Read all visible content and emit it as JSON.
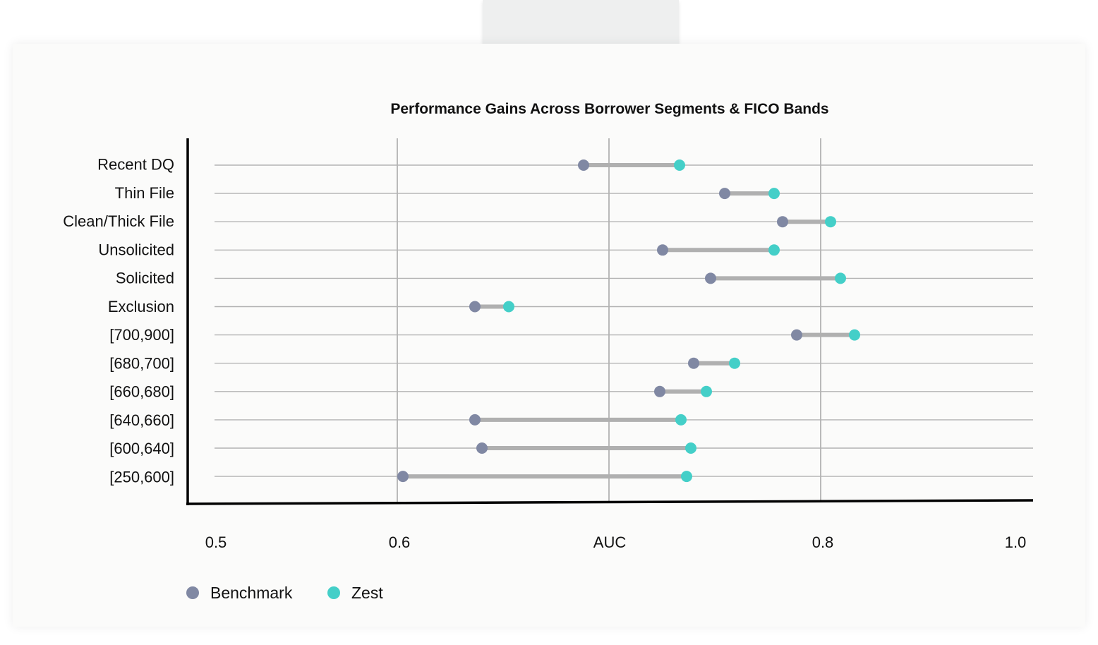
{
  "chart_data": {
    "type": "dumbbell",
    "title": "Performance Gains Across Borrower Segments & FICO Bands",
    "xlabel": "AUC",
    "x_ticks": [
      "0.5",
      "0.6",
      "AUC",
      "0.8",
      "1.0"
    ],
    "categories": [
      "Recent DQ",
      "Thin File",
      "Clean/Thick File",
      "Unsolicited",
      "Solicited",
      "Exclusion",
      "[700,900]",
      "[680,700]",
      "[660,680]",
      "[640,660]",
      "[600,640]",
      "[250,600]"
    ],
    "series": [
      {
        "name": "Benchmark",
        "color": "#8088a3",
        "values": [
          0.682,
          0.782,
          0.823,
          0.738,
          0.772,
          0.605,
          0.833,
          0.76,
          0.736,
          0.605,
          0.61,
          0.554
        ]
      },
      {
        "name": "Zest",
        "color": "#44cfc8",
        "values": [
          0.75,
          0.817,
          0.857,
          0.817,
          0.864,
          0.629,
          0.874,
          0.789,
          0.769,
          0.751,
          0.758,
          0.755
        ]
      }
    ],
    "xlim": [
      0.4,
      1.0
    ],
    "grid": true,
    "legend_position": "bottom-left"
  },
  "legend": {
    "items": [
      {
        "label": "Benchmark",
        "color": "#8088a3"
      },
      {
        "label": "Zest",
        "color": "#44cfc8"
      }
    ]
  }
}
